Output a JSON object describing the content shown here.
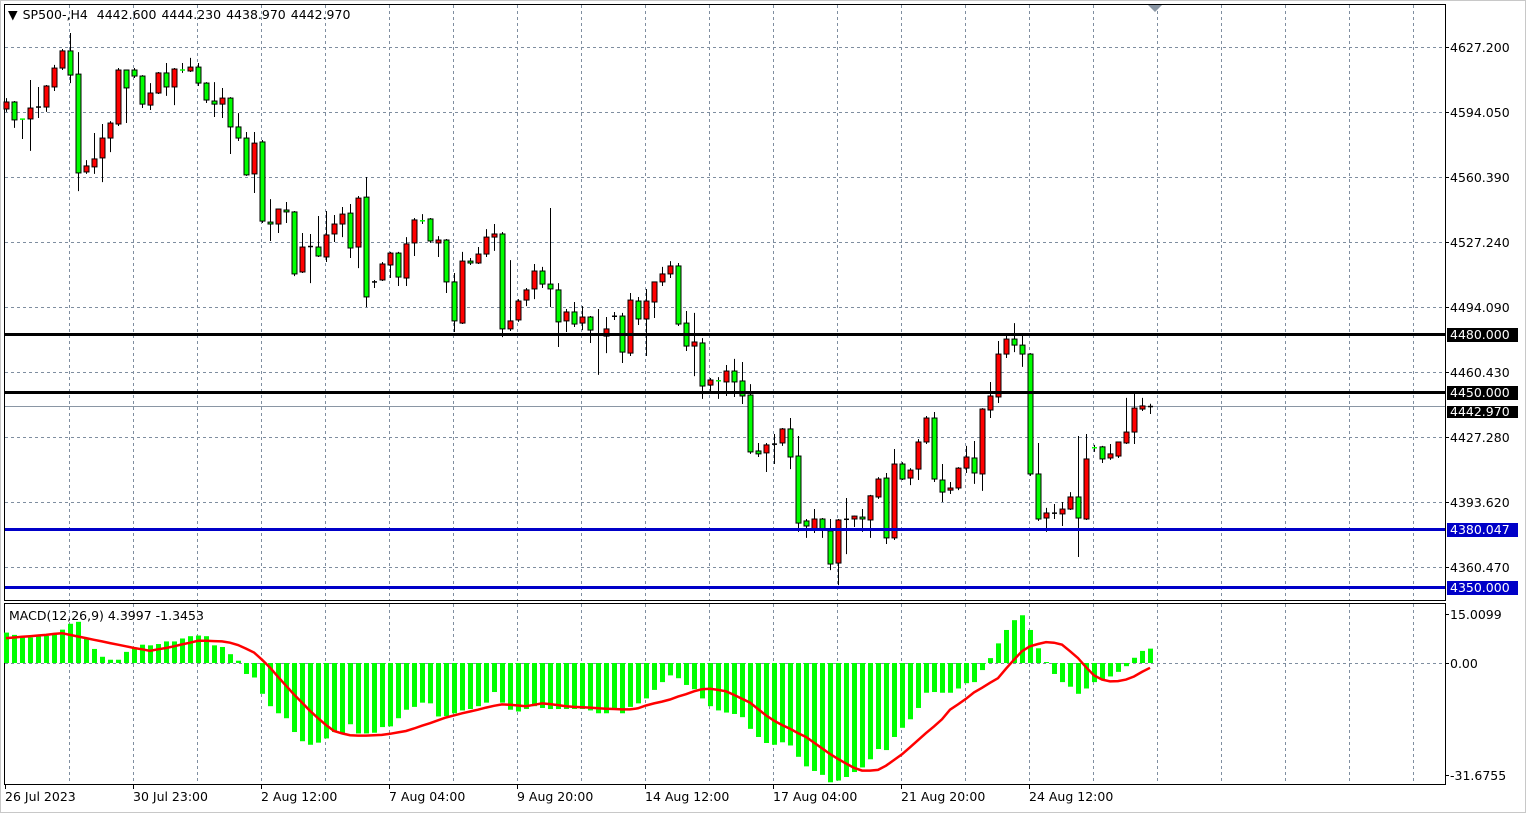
{
  "header": {
    "menu_icon": "triangle-down-icon",
    "symbol": "SP500-,H4",
    "open": "4442.600",
    "high": "4444.230",
    "low": "4438.970",
    "close": "4442.970"
  },
  "colors": {
    "bull": "#ff0000",
    "bear": "#00ff00",
    "grid": "#7f8ea0",
    "macd_hist": "#00ff00",
    "macd_signal": "#ff0000"
  },
  "chart_data": [
    {
      "type": "candlestick",
      "title": "SP500-,H4",
      "ylim": [
        4340,
        4650
      ],
      "grid": true,
      "y_ticks": [
        "4627.200",
        "4594.050",
        "4560.390",
        "4527.240",
        "4494.090",
        "4460.430",
        "4427.280",
        "4393.620",
        "4360.470"
      ],
      "x_ticks": [
        "26 Jul 2023",
        "30 Jul 23:00",
        "2 Aug 12:00",
        "7 Aug 04:00",
        "9 Aug 20:00",
        "14 Aug 12:00",
        "17 Aug 04:00",
        "21 Aug 20:00",
        "24 Aug 12:00"
      ],
      "current_price": {
        "value": 4442.97,
        "label": "4442.970",
        "color": "#000000"
      },
      "levels": [
        {
          "value": 4480.0,
          "label": "4480.000",
          "color": "#000000"
        },
        {
          "value": 4450.0,
          "label": "4450.000",
          "color": "#000000"
        },
        {
          "value": 4380.047,
          "label": "4380.047",
          "color": "#0000c8"
        },
        {
          "value": 4350.0,
          "label": "4350.000",
          "color": "#0000c8"
        }
      ],
      "ohlc_fields": [
        "open",
        "high",
        "low",
        "close"
      ],
      "ohlc": [
        [
          4595.4,
          4601.0,
          4593.9,
          4599.0
        ],
        [
          4599.0,
          4599.5,
          4585.7,
          4589.8
        ],
        [
          4590.3,
          4590.5,
          4580.0,
          4590.1
        ],
        [
          4590.3,
          4610.3,
          4573.9,
          4595.9
        ],
        [
          4596.2,
          4606.7,
          4590.8,
          4596.6
        ],
        [
          4596.4,
          4607.7,
          4593.9,
          4607.2
        ],
        [
          4606.7,
          4618.0,
          4604.6,
          4616.4
        ],
        [
          4616.4,
          4626.2,
          4615.4,
          4625.2
        ],
        [
          4625.2,
          4634.4,
          4608.7,
          4612.8
        ],
        [
          4613.3,
          4624.6,
          4553.3,
          4562.6
        ],
        [
          4563.1,
          4569.2,
          4562.1,
          4566.2
        ],
        [
          4565.7,
          4583.1,
          4562.1,
          4569.8
        ],
        [
          4570.3,
          4587.7,
          4557.9,
          4580.5
        ],
        [
          4580.5,
          4589.2,
          4573.3,
          4588.2
        ],
        [
          4587.7,
          4616.4,
          4586.7,
          4615.4
        ],
        [
          4615.4,
          4615.6,
          4588.2,
          4606.2
        ],
        [
          4615.4,
          4616.4,
          4611.3,
          4612.3
        ],
        [
          4612.3,
          4612.8,
          4595.9,
          4597.9
        ],
        [
          4597.4,
          4608.7,
          4594.9,
          4603.6
        ],
        [
          4603.6,
          4614.4,
          4603.1,
          4613.9
        ],
        [
          4613.9,
          4619.0,
          4602.1,
          4606.7
        ],
        [
          4606.7,
          4616.4,
          4597.4,
          4615.9
        ],
        [
          4615.6,
          4619.0,
          4613.9,
          4615.2
        ],
        [
          4614.9,
          4621.6,
          4614.4,
          4616.9
        ],
        [
          4616.9,
          4619.0,
          4607.2,
          4608.7
        ],
        [
          4608.7,
          4609.2,
          4598.5,
          4600.0
        ],
        [
          4599.5,
          4609.2,
          4591.3,
          4597.9
        ],
        [
          4597.9,
          4606.2,
          4590.8,
          4601.0
        ],
        [
          4601.0,
          4601.5,
          4572.3,
          4586.2
        ],
        [
          4586.2,
          4593.3,
          4579.0,
          4580.5
        ],
        [
          4580.5,
          4583.6,
          4561.1,
          4561.6
        ],
        [
          4562.1,
          4583.6,
          4552.3,
          4577.9
        ],
        [
          4578.5,
          4579.5,
          4536.9,
          4537.9
        ],
        [
          4537.4,
          4549.2,
          4527.7,
          4536.4
        ],
        [
          4536.4,
          4544.3,
          4531.8,
          4544.1
        ],
        [
          4543.6,
          4547.7,
          4536.9,
          4542.6
        ],
        [
          4542.6,
          4543.1,
          4509.7,
          4510.8
        ],
        [
          4511.8,
          4531.8,
          4511.3,
          4524.6
        ],
        [
          4524.6,
          4531.3,
          4506.1,
          4525.1
        ],
        [
          4524.6,
          4540.5,
          4519.5,
          4520.0
        ],
        [
          4519.5,
          4543.1,
          4516.9,
          4530.8
        ],
        [
          4531.3,
          4541.0,
          4527.2,
          4536.4
        ],
        [
          4536.4,
          4545.1,
          4529.7,
          4541.5
        ],
        [
          4542.0,
          4546.7,
          4519.0,
          4524.1
        ],
        [
          4524.6,
          4550.8,
          4513.8,
          4549.7
        ],
        [
          4550.2,
          4560.5,
          4493.8,
          4499.0
        ],
        [
          4506.5,
          4507.7,
          4503.6,
          4506.9
        ],
        [
          4507.7,
          4516.9,
          4507.2,
          4515.9
        ],
        [
          4515.4,
          4522.1,
          4508.7,
          4521.5
        ],
        [
          4521.5,
          4522.1,
          4504.6,
          4509.2
        ],
        [
          4508.7,
          4529.7,
          4504.6,
          4526.2
        ],
        [
          4526.7,
          4539.5,
          4520.0,
          4538.5
        ],
        [
          4538.2,
          4541.5,
          4536.4,
          4537.9
        ],
        [
          4539.0,
          4539.5,
          4526.7,
          4527.7
        ],
        [
          4526.7,
          4530.2,
          4519.5,
          4528.2
        ],
        [
          4528.2,
          4528.7,
          4501.0,
          4506.7
        ],
        [
          4506.7,
          4511.3,
          4481.0,
          4486.7
        ],
        [
          4485.6,
          4522.1,
          4485.1,
          4517.4
        ],
        [
          4517.4,
          4519.0,
          4515.4,
          4516.4
        ],
        [
          4516.4,
          4524.6,
          4515.9,
          4521.0
        ],
        [
          4521.0,
          4533.8,
          4519.5,
          4529.7
        ],
        [
          4529.7,
          4536.4,
          4522.6,
          4531.3
        ],
        [
          4531.3,
          4532.3,
          4478.4,
          4482.6
        ],
        [
          4482.6,
          4517.9,
          4481.5,
          4486.7
        ],
        [
          4487.2,
          4497.9,
          4486.2,
          4496.9
        ],
        [
          4497.4,
          4503.6,
          4494.3,
          4502.6
        ],
        [
          4503.1,
          4515.9,
          4497.9,
          4512.3
        ],
        [
          4512.3,
          4514.4,
          4503.6,
          4505.6
        ],
        [
          4505.6,
          4544.6,
          4493.8,
          4503.1
        ],
        [
          4502.6,
          4506.1,
          4473.3,
          4486.2
        ],
        [
          4486.7,
          4492.8,
          4481.0,
          4491.3
        ],
        [
          4491.3,
          4496.4,
          4483.6,
          4485.1
        ],
        [
          4485.6,
          4494.3,
          4482.0,
          4488.7
        ],
        [
          4488.7,
          4489.2,
          4475.4,
          4482.0
        ],
        [
          4480.0,
          4492.8,
          4459.0,
          4479.5
        ],
        [
          4478.9,
          4488.7,
          4470.2,
          4482.6
        ],
        [
          4489.0,
          4491.3,
          4487.2,
          4489.2
        ],
        [
          4489.2,
          4490.8,
          4465.1,
          4470.7
        ],
        [
          4470.2,
          4501.0,
          4468.7,
          4497.4
        ],
        [
          4496.9,
          4499.0,
          4484.6,
          4487.7
        ],
        [
          4487.7,
          4503.1,
          4468.7,
          4496.9
        ],
        [
          4496.4,
          4506.7,
          4488.2,
          4506.7
        ],
        [
          4506.7,
          4514.4,
          4504.6,
          4510.8
        ],
        [
          4510.8,
          4517.4,
          4508.7,
          4514.9
        ],
        [
          4514.9,
          4516.4,
          4484.1,
          4485.1
        ],
        [
          4485.6,
          4491.8,
          4471.3,
          4473.8
        ],
        [
          4473.8,
          4490.8,
          4458.4,
          4475.9
        ],
        [
          4475.4,
          4477.9,
          4446.7,
          4453.3
        ],
        [
          4453.8,
          4457.4,
          4450.2,
          4456.4
        ],
        [
          4456.1,
          4457.9,
          4446.7,
          4455.9
        ],
        [
          4455.4,
          4464.1,
          4448.2,
          4461.0
        ],
        [
          4461.0,
          4467.2,
          4447.7,
          4455.4
        ],
        [
          4455.9,
          4465.6,
          4444.1,
          4448.2
        ],
        [
          4448.7,
          4454.3,
          4418.5,
          4419.5
        ],
        [
          4420.0,
          4424.1,
          4416.9,
          4418.5
        ],
        [
          4419.0,
          4424.1,
          4409.2,
          4423.1
        ],
        [
          4423.4,
          4428.7,
          4413.3,
          4423.6
        ],
        [
          4424.1,
          4431.8,
          4422.6,
          4431.3
        ],
        [
          4431.3,
          4436.9,
          4410.7,
          4416.9
        ],
        [
          4417.4,
          4427.7,
          4378.5,
          4383.0
        ],
        [
          4384.1,
          4385.1,
          4375.4,
          4381.5
        ],
        [
          4379.5,
          4390.2,
          4377.9,
          4385.1
        ],
        [
          4385.1,
          4385.6,
          4375.4,
          4379.5
        ],
        [
          4379.0,
          4385.1,
          4358.9,
          4362.0
        ],
        [
          4362.5,
          4385.1,
          4351.2,
          4384.6
        ],
        [
          4384.8,
          4395.9,
          4367.1,
          4385.1
        ],
        [
          4385.1,
          4386.9,
          4381.0,
          4386.6
        ],
        [
          4386.1,
          4390.2,
          4378.5,
          4385.1
        ],
        [
          4384.6,
          4397.5,
          4375.4,
          4397.0
        ],
        [
          4396.4,
          4406.6,
          4395.4,
          4405.6
        ],
        [
          4406.1,
          4408.7,
          4372.3,
          4375.4
        ],
        [
          4375.4,
          4421.0,
          4374.3,
          4413.3
        ],
        [
          4413.3,
          4414.3,
          4405.1,
          4405.6
        ],
        [
          4406.1,
          4411.2,
          4402.5,
          4410.2
        ],
        [
          4410.7,
          4426.1,
          4405.1,
          4424.6
        ],
        [
          4424.6,
          4437.9,
          4423.6,
          4436.9
        ],
        [
          4436.9,
          4440.0,
          4404.1,
          4405.6
        ],
        [
          4405.1,
          4413.3,
          4393.8,
          4398.9
        ],
        [
          4399.9,
          4404.1,
          4397.9,
          4401.0
        ],
        [
          4401.0,
          4411.7,
          4399.9,
          4411.2
        ],
        [
          4411.2,
          4422.6,
          4408.7,
          4416.9
        ],
        [
          4416.4,
          4425.1,
          4403.1,
          4408.7
        ],
        [
          4408.2,
          4442.0,
          4399.5,
          4441.5
        ],
        [
          4441.0,
          4455.4,
          4436.9,
          4448.2
        ],
        [
          4447.7,
          4476.4,
          4444.6,
          4469.7
        ],
        [
          4469.7,
          4479.5,
          4467.7,
          4477.4
        ],
        [
          4477.4,
          4485.6,
          4470.7,
          4474.3
        ],
        [
          4474.3,
          4479.5,
          4463.1,
          4469.7
        ],
        [
          4469.7,
          4470.2,
          4407.2,
          4408.2
        ],
        [
          4408.2,
          4424.1,
          4384.1,
          4385.1
        ],
        [
          4385.6,
          4390.8,
          4378.5,
          4388.2
        ],
        [
          4388.0,
          4392.8,
          4385.1,
          4388.2
        ],
        [
          4387.7,
          4393.8,
          4381.5,
          4390.2
        ],
        [
          4390.2,
          4398.9,
          4389.7,
          4396.4
        ],
        [
          4396.4,
          4427.7,
          4365.6,
          4385.6
        ],
        [
          4385.1,
          4428.7,
          4384.6,
          4415.9
        ],
        [
          4421.8,
          4423.1,
          4419.5,
          4421.5
        ],
        [
          4422.1,
          4422.6,
          4413.8,
          4415.9
        ],
        [
          4416.4,
          4423.6,
          4415.4,
          4418.5
        ],
        [
          4417.4,
          4424.6,
          4416.4,
          4424.6
        ],
        [
          4424.1,
          4447.2,
          4423.6,
          4429.7
        ],
        [
          4429.7,
          4449.2,
          4423.6,
          4442.0
        ],
        [
          4441.5,
          4447.2,
          4440.5,
          4443.1
        ],
        [
          4442.6,
          4444.23,
          4438.97,
          4442.97
        ]
      ]
    },
    {
      "type": "bar+line",
      "title": "MACD(12,26,9)",
      "main_value": "4.3997",
      "signal_value": "-1.3453",
      "y_ticks": [
        "15.0099",
        "0.00",
        "-31.6755"
      ],
      "ylim": [
        -31.6755,
        15.0099
      ],
      "histogram": [
        9.3,
        8.6,
        7.8,
        7.8,
        8.3,
        8.3,
        8.8,
        10.2,
        12.0,
        12.6,
        7.6,
        4.3,
        1.9,
        1.0,
        1.0,
        3.4,
        4.7,
        5.6,
        5.4,
        5.8,
        6.6,
        6.6,
        7.5,
        8.2,
        8.4,
        8.2,
        5.4,
        4.9,
        2.7,
        0.7,
        -3.1,
        -4.1,
        -8.7,
        -12.2,
        -14.2,
        -15.6,
        -19.5,
        -22.1,
        -23.1,
        -22.5,
        -21.3,
        -19.5,
        -19.9,
        -17.3,
        -19.9,
        -19.9,
        -19.7,
        -18.1,
        -17.9,
        -15.6,
        -13.2,
        -12.4,
        -11.2,
        -11.4,
        -15.1,
        -15.0,
        -14.2,
        -13.4,
        -13.0,
        -12.2,
        -11.2,
        -8.2,
        -11.2,
        -13.2,
        -13.7,
        -13.0,
        -12.2,
        -12.7,
        -13.0,
        -13.0,
        -13.0,
        -13.0,
        -13.0,
        -13.4,
        -14.2,
        -14.2,
        -12.7,
        -14.2,
        -12.4,
        -11.4,
        -10.0,
        -7.6,
        -5.4,
        -3.5,
        -4.3,
        -6.2,
        -7.4,
        -10.0,
        -12.2,
        -13.4,
        -14.0,
        -14.4,
        -15.3,
        -18.6,
        -20.9,
        -22.6,
        -23.1,
        -22.4,
        -23.3,
        -26.5,
        -29.2,
        -30.5,
        -31.6,
        -33.7,
        -33.2,
        -32.2,
        -30.8,
        -29.5,
        -27.2,
        -24.3,
        -24.6,
        -20.9,
        -18.3,
        -15.9,
        -12.7,
        -8.4,
        -8.2,
        -8.4,
        -8.4,
        -7.2,
        -5.7,
        -5.4,
        -2.0,
        1.5,
        6.0,
        10.1,
        13.1,
        14.6,
        10.1,
        4.5,
        0.3,
        -3.1,
        -5.4,
        -6.7,
        -8.7,
        -7.2,
        -5.4,
        -4.8,
        -3.8,
        -2.5,
        -0.9,
        1.6,
        3.7,
        4.3997
      ],
      "signal": [
        7.6,
        7.8,
        8.0,
        8.2,
        8.4,
        8.6,
        8.9,
        9.1,
        8.6,
        8.1,
        7.6,
        7.1,
        6.6,
        6.1,
        5.6,
        5.1,
        4.6,
        4.2,
        3.7,
        4.2,
        4.6,
        5.1,
        5.7,
        6.2,
        6.8,
        6.8,
        6.7,
        6.6,
        6.2,
        5.5,
        4.4,
        3.2,
        1.0,
        -1.3,
        -3.9,
        -6.4,
        -8.9,
        -11.2,
        -13.5,
        -15.6,
        -17.5,
        -19.2,
        -19.9,
        -20.4,
        -20.5,
        -20.5,
        -20.4,
        -20.3,
        -20.0,
        -19.6,
        -19.2,
        -18.5,
        -17.7,
        -17.0,
        -16.2,
        -15.4,
        -14.8,
        -14.2,
        -13.7,
        -13.2,
        -12.6,
        -12.1,
        -11.7,
        -11.8,
        -12.0,
        -12.2,
        -11.8,
        -11.4,
        -11.6,
        -11.9,
        -12.2,
        -12.4,
        -12.5,
        -12.6,
        -12.8,
        -12.9,
        -13.0,
        -13.1,
        -13.1,
        -12.8,
        -12.0,
        -11.4,
        -10.9,
        -10.3,
        -9.5,
        -8.8,
        -8.0,
        -7.4,
        -7.3,
        -7.6,
        -8.0,
        -9.0,
        -10.1,
        -11.2,
        -13.0,
        -14.8,
        -16.3,
        -17.5,
        -18.6,
        -19.8,
        -20.9,
        -22.5,
        -24.1,
        -25.7,
        -27.1,
        -28.4,
        -29.6,
        -30.4,
        -30.4,
        -30.2,
        -29.0,
        -27.4,
        -25.8,
        -23.8,
        -21.8,
        -19.8,
        -17.9,
        -15.9,
        -13.2,
        -11.7,
        -10.1,
        -8.3,
        -7.0,
        -5.6,
        -4.3,
        -1.6,
        1.0,
        3.6,
        5.1,
        5.8,
        6.4,
        6.2,
        5.6,
        3.6,
        1.5,
        -1.2,
        -3.5,
        -4.7,
        -5.2,
        -5.1,
        -4.7,
        -3.8,
        -2.5,
        -1.3453
      ]
    }
  ]
}
